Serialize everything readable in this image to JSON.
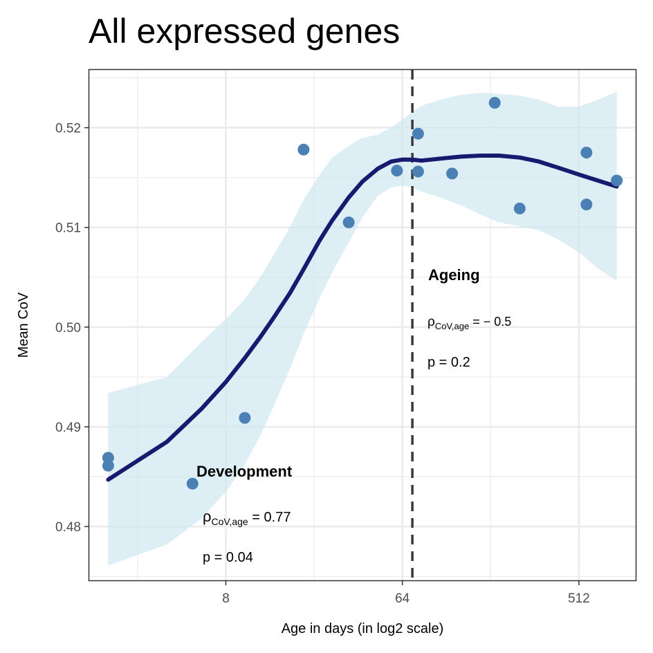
{
  "chart_data": {
    "type": "scatter",
    "title": "All expressed genes",
    "xlabel": "Age in days (in log2 scale)",
    "ylabel": "Mean CoV",
    "x_scale": "log2",
    "xlim": [
      1.6,
      1000
    ],
    "ylim": [
      0.4746,
      0.5258
    ],
    "x_ticks": [
      8,
      64,
      512
    ],
    "x_tick_labels": [
      "8",
      "64",
      "512"
    ],
    "y_ticks": [
      0.48,
      0.49,
      0.5,
      0.51,
      0.52
    ],
    "y_tick_labels": [
      "0.48",
      "0.49",
      "0.50",
      "0.51",
      "0.52"
    ],
    "grid": true,
    "colors": {
      "points": "#4a80b4",
      "smooth": "#191970",
      "ribbon": "#cfe7f1",
      "vline": "#3a3a3a",
      "grid": "#ebebeb"
    },
    "points": [
      {
        "x": 2,
        "y": 0.4869
      },
      {
        "x": 2,
        "y": 0.4861
      },
      {
        "x": 5.4,
        "y": 0.4843
      },
      {
        "x": 10,
        "y": 0.4909
      },
      {
        "x": 20,
        "y": 0.5178
      },
      {
        "x": 34,
        "y": 0.5105
      },
      {
        "x": 60,
        "y": 0.5157
      },
      {
        "x": 77,
        "y": 0.5194
      },
      {
        "x": 77,
        "y": 0.5156
      },
      {
        "x": 115,
        "y": 0.5154
      },
      {
        "x": 190,
        "y": 0.5225
      },
      {
        "x": 255,
        "y": 0.5119
      },
      {
        "x": 560,
        "y": 0.5175
      },
      {
        "x": 560,
        "y": 0.5123
      },
      {
        "x": 800,
        "y": 0.5147
      }
    ],
    "smooth": {
      "x": [
        2,
        4,
        6,
        8,
        10,
        12,
        14,
        17,
        20,
        24,
        28,
        34,
        40,
        48,
        56,
        64,
        72,
        80,
        100,
        128,
        160,
        200,
        256,
        320,
        400,
        512,
        640,
        800
      ],
      "y": [
        0.4847,
        0.4885,
        0.4918,
        0.4945,
        0.4969,
        0.499,
        0.5009,
        0.5034,
        0.5058,
        0.5086,
        0.5107,
        0.513,
        0.5146,
        0.5159,
        0.5166,
        0.5168,
        0.5168,
        0.5167,
        0.5169,
        0.5171,
        0.5172,
        0.5172,
        0.517,
        0.5166,
        0.516,
        0.5153,
        0.5147,
        0.5141
      ],
      "ymin": [
        0.4761,
        0.4782,
        0.4808,
        0.4835,
        0.4862,
        0.4891,
        0.492,
        0.4958,
        0.4993,
        0.5028,
        0.5055,
        0.5085,
        0.511,
        0.5132,
        0.514,
        0.5142,
        0.514,
        0.5136,
        0.513,
        0.5122,
        0.5113,
        0.5105,
        0.5101,
        0.5097,
        0.5088,
        0.5075,
        0.5059,
        0.5046
      ],
      "ymax": [
        0.4934,
        0.495,
        0.4985,
        0.5008,
        0.5028,
        0.505,
        0.5072,
        0.51,
        0.5128,
        0.5152,
        0.517,
        0.5182,
        0.519,
        0.5193,
        0.52,
        0.5208,
        0.5216,
        0.5222,
        0.5228,
        0.5233,
        0.5235,
        0.5234,
        0.5232,
        0.5228,
        0.5221,
        0.5221,
        0.5228,
        0.5236
      ]
    },
    "vline": {
      "x": 72
    },
    "annotations": {
      "development": {
        "heading": "Development",
        "rho_symbol": "ρ",
        "rho_sub": "CoV,age",
        "rho_value": " = 0.77",
        "p": "p = 0.04"
      },
      "ageing": {
        "heading": "Ageing",
        "rho_symbol": "ρ",
        "rho_sub": "CoV,age",
        "rho_value": " = − 0.5",
        "p": "p = 0.2"
      }
    }
  }
}
